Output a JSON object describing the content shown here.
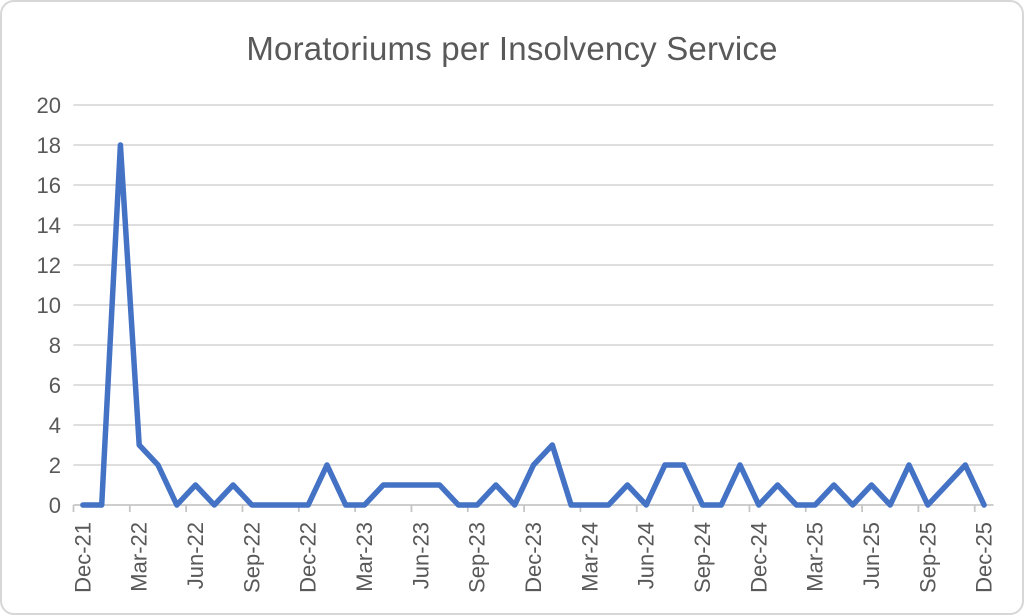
{
  "title": "Moratoriums per Insolvency Service",
  "chart_data": {
    "type": "line",
    "title": "Moratoriums per Insolvency Service",
    "x": [
      "Dec-21",
      "Jan-22",
      "Feb-22",
      "Mar-22",
      "Apr-22",
      "May-22",
      "Jun-22",
      "Jul-22",
      "Aug-22",
      "Sep-22",
      "Oct-22",
      "Nov-22",
      "Dec-22",
      "Jan-23",
      "Feb-23",
      "Mar-23",
      "Apr-23",
      "May-23",
      "Jun-23",
      "Jul-23",
      "Aug-23",
      "Sep-23",
      "Oct-23",
      "Nov-23",
      "Dec-23",
      "Jan-24",
      "Feb-24",
      "Mar-24",
      "Apr-24",
      "May-24",
      "Jun-24",
      "Jul-24",
      "Aug-24",
      "Sep-24",
      "Oct-24",
      "Nov-24",
      "Dec-24",
      "Jan-25",
      "Feb-25",
      "Mar-25",
      "Apr-25",
      "May-25",
      "Jun-25",
      "Jul-25",
      "Aug-25",
      "Sep-25",
      "Oct-25",
      "Nov-25",
      "Dec-25"
    ],
    "values": [
      0,
      0,
      18,
      3,
      2,
      0,
      1,
      0,
      1,
      0,
      0,
      0,
      0,
      2,
      0,
      0,
      1,
      1,
      1,
      1,
      0,
      0,
      1,
      0,
      2,
      3,
      0,
      0,
      0,
      1,
      0,
      2,
      2,
      0,
      0,
      2,
      0,
      1,
      0,
      0,
      1,
      0,
      1,
      0,
      2,
      0,
      1,
      2,
      0
    ],
    "visible_x_tick_labels": [
      "Dec-21",
      "Mar-22",
      "Jun-22",
      "Sep-22",
      "Dec-22",
      "Mar-23",
      "Jun-23",
      "Sep-23",
      "Dec-23",
      "Mar-24",
      "Jun-24",
      "Sep-24",
      "Dec-24",
      "Mar-25",
      "Jun-25",
      "Sep-25",
      "Dec-25"
    ],
    "x_label_interval": 3,
    "y_ticks": [
      0,
      2,
      4,
      6,
      8,
      10,
      12,
      14,
      16,
      18,
      20
    ],
    "ylim": [
      0,
      20
    ],
    "grid": "horizontal",
    "legend": "none",
    "xlabel": "",
    "ylabel": ""
  },
  "colors": {
    "series": "#4472C4",
    "gridline": "#d9d9d9",
    "axis": "#c6c6c6",
    "text": "#595959",
    "frame_border": "#d7d7d7",
    "background": "#ffffff"
  }
}
